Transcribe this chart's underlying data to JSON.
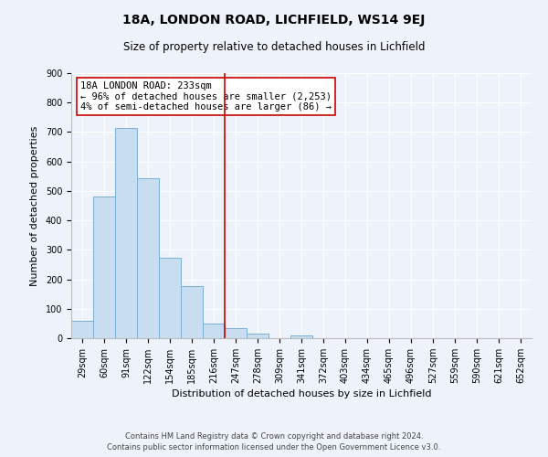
{
  "title": "18A, LONDON ROAD, LICHFIELD, WS14 9EJ",
  "subtitle": "Size of property relative to detached houses in Lichfield",
  "xlabel": "Distribution of detached houses by size in Lichfield",
  "ylabel": "Number of detached properties",
  "footer_line1": "Contains HM Land Registry data © Crown copyright and database right 2024.",
  "footer_line2": "Contains public sector information licensed under the Open Government Licence v3.0.",
  "categories": [
    "29sqm",
    "60sqm",
    "91sqm",
    "122sqm",
    "154sqm",
    "185sqm",
    "216sqm",
    "247sqm",
    "278sqm",
    "309sqm",
    "341sqm",
    "372sqm",
    "403sqm",
    "434sqm",
    "465sqm",
    "496sqm",
    "527sqm",
    "559sqm",
    "590sqm",
    "621sqm",
    "652sqm"
  ],
  "values": [
    60,
    480,
    715,
    543,
    272,
    178,
    49,
    34,
    15,
    0,
    8,
    0,
    0,
    0,
    0,
    0,
    0,
    0,
    0,
    0,
    0
  ],
  "bar_color": "#c8ddf0",
  "bar_edge_color": "#7bafd4",
  "vline_x": 6.5,
  "vline_color": "#cc0000",
  "annotation_title": "18A LONDON ROAD: 233sqm",
  "annotation_line1": "← 96% of detached houses are smaller (2,253)",
  "annotation_line2": "4% of semi-detached houses are larger (86) →",
  "annotation_box_color": "#ffffff",
  "annotation_box_edgecolor": "#cc0000",
  "ylim": [
    0,
    900
  ],
  "yticks": [
    0,
    100,
    200,
    300,
    400,
    500,
    600,
    700,
    800,
    900
  ],
  "background_color": "#eef2fb",
  "grid_color": "#ffffff",
  "title_fontsize": 10,
  "subtitle_fontsize": 8.5,
  "axis_label_fontsize": 8,
  "tick_fontsize": 7,
  "annotation_fontsize": 7.5,
  "footer_fontsize": 6
}
